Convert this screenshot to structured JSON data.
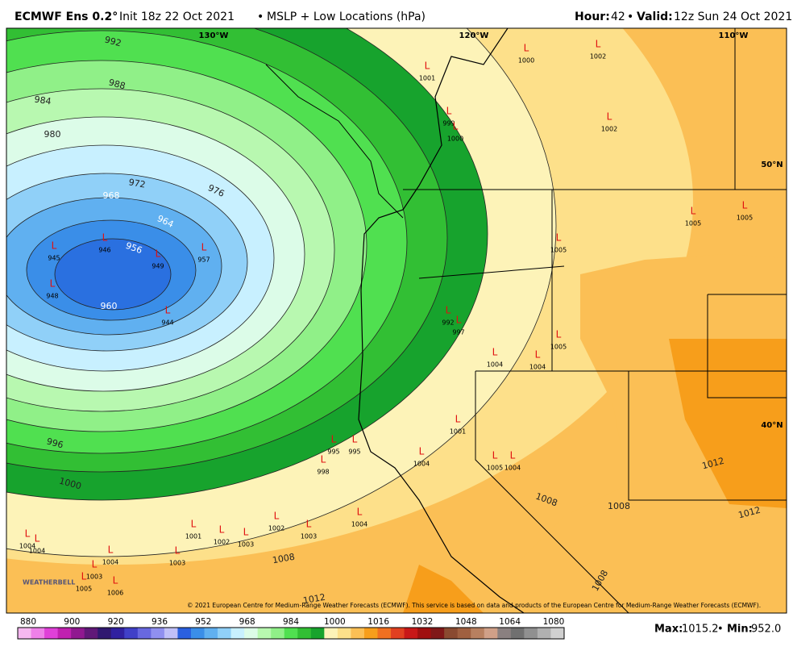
{
  "header": {
    "model": "ECMWF Ens 0.2°",
    "init": "Init 18z 22 Oct 2021",
    "bullet": "•",
    "product": "MSLP + Low Locations (hPa)",
    "hour_label": "Hour:",
    "hour": "42",
    "valid_label": "Valid:",
    "valid": "12z Sun 24 Oct 2021"
  },
  "map": {
    "lon_labels": [
      "130°W",
      "120°W",
      "110°W"
    ],
    "lat_labels": [
      "50°N",
      "40°N"
    ],
    "contour_labels": [
      "992",
      "988",
      "984",
      "980",
      "976",
      "972",
      "968",
      "964",
      "956",
      "960",
      "996",
      "1000",
      "1008",
      "1012",
      "1012",
      "1012",
      "1008",
      "1008",
      "1008"
    ],
    "low_symbol": "L",
    "low_pressures": [
      "1002",
      "1002",
      "1005",
      "1005",
      "1005",
      "1005",
      "1004",
      "1004",
      "992",
      "997",
      "999",
      "1000",
      "1000",
      "1001",
      "1005",
      "1004",
      "1004",
      "995",
      "995",
      "998",
      "1001",
      "1001",
      "1002",
      "1003",
      "1002",
      "1003",
      "1004",
      "1004",
      "1004",
      "1004",
      "1003",
      "1003",
      "1005",
      "1006",
      "957",
      "949",
      "945",
      "946",
      "944",
      "948"
    ],
    "copyright": "© 2021 European Centre for Medium-Range Weather Forecasts (ECMWF). This service is based on data and products of the European Centre for Medium-Range Weather Forecasts (ECMWF).",
    "logo": "WEATHERBELL"
  },
  "colorbar": {
    "ticks": [
      "880",
      "900",
      "920",
      "936",
      "952",
      "968",
      "984",
      "1000",
      "1016",
      "1032",
      "1048",
      "1064",
      "1080"
    ]
  },
  "footer": {
    "max_label": "Max:",
    "max": "1015.2",
    "min_label": "Min:",
    "min": "952.0",
    "sep": "•"
  }
}
